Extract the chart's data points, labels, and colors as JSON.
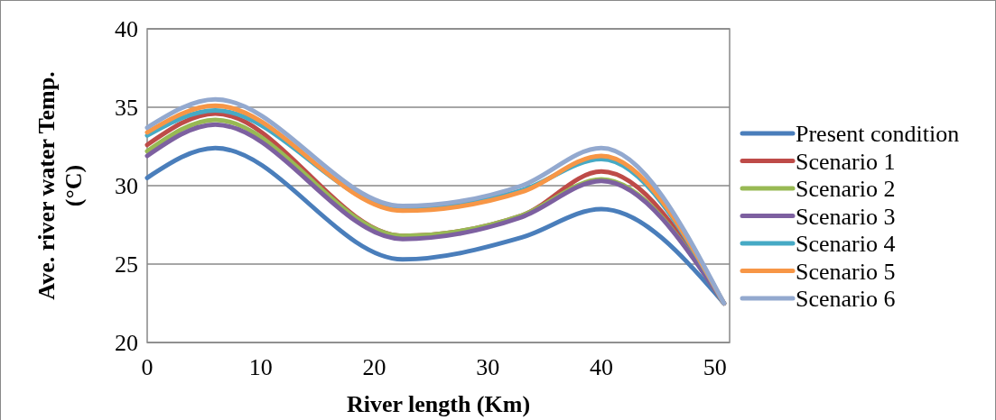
{
  "chart_data": {
    "type": "line",
    "xlabel": "River length (Km)",
    "ylabel": "Ave. river water Temp. (°C)",
    "x": [
      0,
      6,
      22.5,
      33,
      40,
      50.8
    ],
    "xlim": [
      0,
      51.3
    ],
    "xticks": [
      0,
      10,
      20,
      30,
      40,
      50
    ],
    "ylim": [
      20,
      40
    ],
    "yticks": [
      20,
      25,
      30,
      35,
      40
    ],
    "grid": "y",
    "legend": "right",
    "marker": "none",
    "line_style": "solid",
    "series": [
      {
        "name": "Present condition",
        "color": "#4a7ebb",
        "values": [
          30.5,
          32.4,
          25.3,
          26.7,
          28.5,
          22.5
        ]
      },
      {
        "name": "Scenario 1",
        "color": "#be4b48",
        "values": [
          32.6,
          34.6,
          26.8,
          28.1,
          30.9,
          22.5
        ]
      },
      {
        "name": "Scenario 2",
        "color": "#98b954",
        "values": [
          32.2,
          34.2,
          26.8,
          28.1,
          30.4,
          22.5
        ]
      },
      {
        "name": "Scenario 3",
        "color": "#7d60a0",
        "values": [
          31.9,
          33.9,
          26.6,
          28.0,
          30.3,
          22.5
        ]
      },
      {
        "name": "Scenario 4",
        "color": "#46aac5",
        "values": [
          33.2,
          34.8,
          28.5,
          29.7,
          31.7,
          22.5
        ]
      },
      {
        "name": "Scenario 5",
        "color": "#f79646",
        "values": [
          33.4,
          35.1,
          28.4,
          29.6,
          31.9,
          22.5
        ]
      },
      {
        "name": "Scenario 6",
        "color": "#93a9cf",
        "values": [
          33.7,
          35.5,
          28.7,
          30.0,
          32.4,
          22.5
        ]
      }
    ]
  }
}
